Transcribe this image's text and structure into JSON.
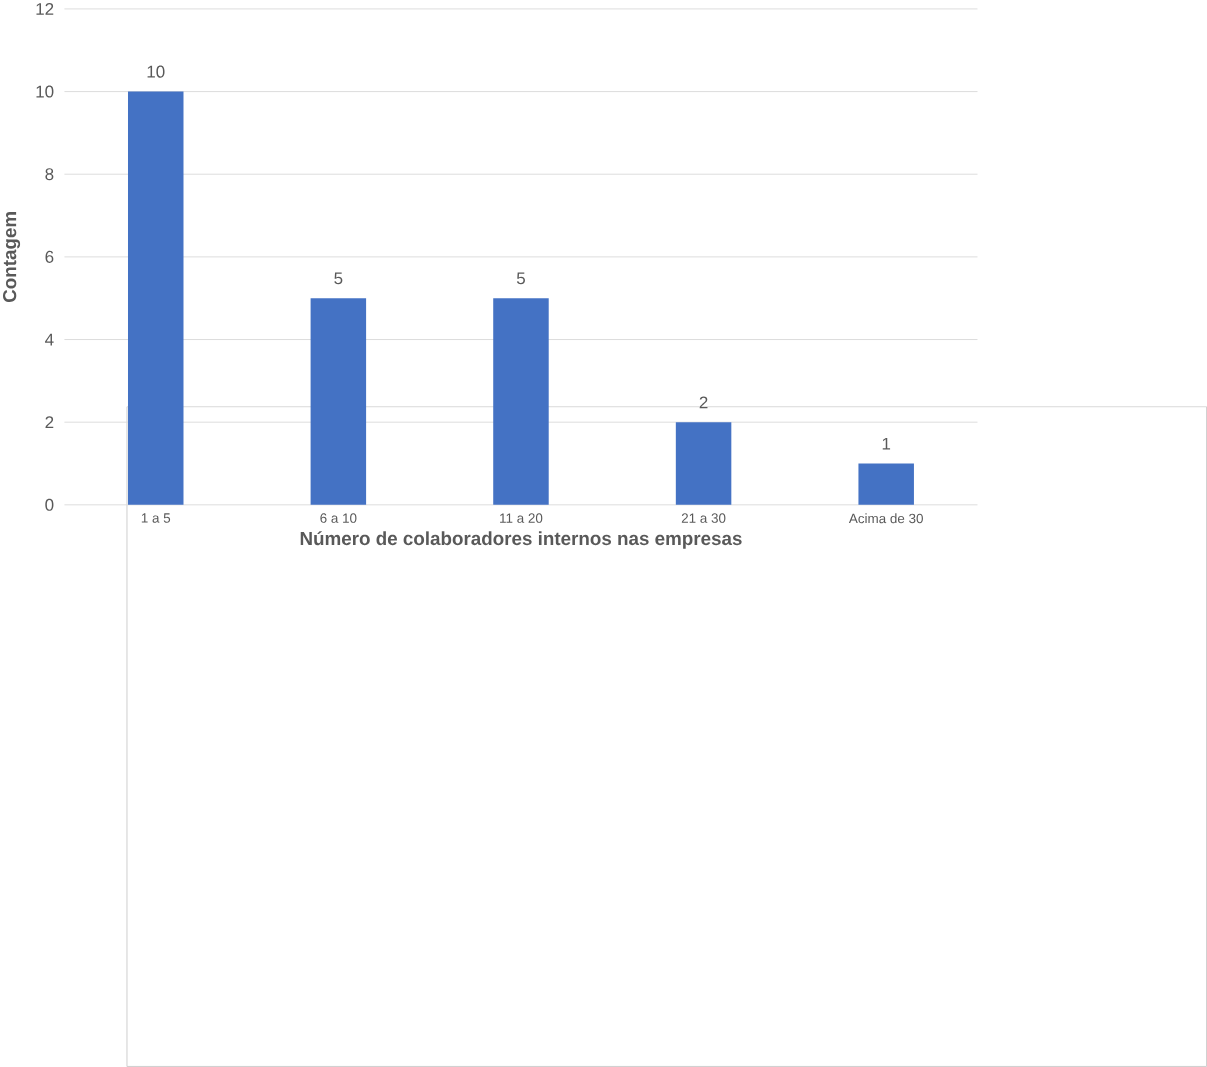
{
  "chart_data": {
    "type": "bar",
    "xlabel": "Número de colaboradores internos nas empresas",
    "ylabel": "Contagem",
    "categories": [
      "1 a 5",
      "6 a 10",
      "11 a 20",
      "21 a 30",
      "Acima de 30"
    ],
    "values": [
      10,
      5,
      5,
      2,
      1
    ],
    "color": "#4472c4",
    "value_labels": [
      "10",
      "5",
      "5",
      "2",
      "1"
    ],
    "ylim": [
      0,
      12
    ],
    "yticks": [
      0,
      2,
      4,
      6,
      8,
      10,
      12
    ],
    "grid": "y"
  }
}
